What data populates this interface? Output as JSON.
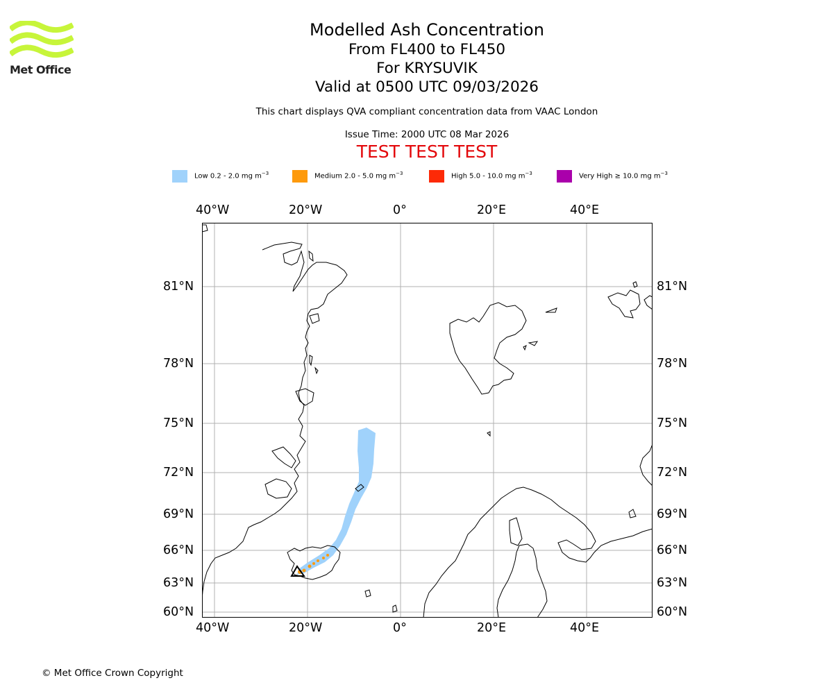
{
  "brand": {
    "name": "Met Office",
    "logo_color": "#c7f53a"
  },
  "title": {
    "line1": "Modelled Ash Concentration",
    "line2": "From FL400 to FL450",
    "line3": "For KRYSUVIK",
    "line4": "Valid at 0500 UTC 09/03/2026"
  },
  "subtitle": "This chart displays QVA compliant concentration data from VAAC London",
  "issue_time": "Issue Time: 2000 UTC 08 Mar 2026",
  "test_banner": {
    "text": "TEST TEST TEST",
    "color": "#e3080b"
  },
  "legend": [
    {
      "label": "Low 0.2 - 2.0 mg m",
      "unit_exp": "−3",
      "color": "#a0d2fb"
    },
    {
      "label": "Medium 2.0 - 5.0 mg m",
      "unit_exp": "−3",
      "color": "#fe9a0c"
    },
    {
      "label": "High 5.0 - 10.0 mg m",
      "unit_exp": "−3",
      "color": "#fd2a07"
    },
    {
      "label": "Very High  ≥  10.0 mg m",
      "unit_exp": "−3",
      "color": "#aa00ab"
    }
  ],
  "map": {
    "lon_ticks": [
      "40°W",
      "20°W",
      "0°",
      "20°E",
      "40°E"
    ],
    "lat_ticks": [
      "81°N",
      "78°N",
      "75°N",
      "72°N",
      "69°N",
      "66°N",
      "63°N",
      "60°N"
    ],
    "volcano_marker": "triangle"
  },
  "copyright": "© Met Office Crown Copyright"
}
